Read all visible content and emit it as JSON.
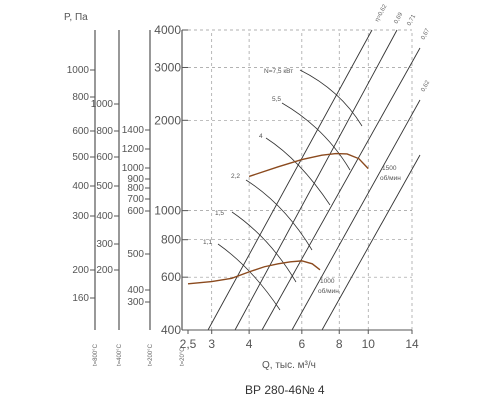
{
  "chart_data": {
    "type": "line",
    "title": "ВР 280-46№ 4",
    "xlabel": "Q, тыс. м³/ч",
    "ylabel": "P, Па",
    "x_ticks": [
      "2,5",
      "3",
      "4",
      "6",
      "8",
      "10",
      "14"
    ],
    "x_tick_values": [
      2.5,
      3,
      4,
      6,
      8,
      10,
      14
    ],
    "y_ticks": [
      "400",
      "600",
      "800",
      "1000",
      "2000",
      "3000",
      "4000"
    ],
    "y_tick_values": [
      400,
      600,
      800,
      1000,
      2000,
      3000,
      4000
    ],
    "xlim": [
      2.5,
      14
    ],
    "ylim": [
      400,
      4000
    ],
    "scale": "log-log",
    "grid": true,
    "aux_axes": [
      {
        "label": "t=800°C",
        "ticks": [
          "1000",
          "800",
          "600",
          "500",
          "400",
          "300",
          "200",
          "160"
        ]
      },
      {
        "label": "t=400°C",
        "ticks": [
          "1000",
          "800",
          "600",
          "500",
          "400",
          "300",
          "200"
        ]
      },
      {
        "label": "t=200°C",
        "ticks": [
          "1400",
          "1200",
          "1000",
          "900",
          "800",
          "700",
          "600",
          "500",
          "400",
          "300"
        ]
      },
      {
        "label": "t=20°C",
        "ticks": []
      }
    ],
    "series": [
      {
        "name": "1500 об/мин",
        "x": [
          4.0,
          5.0,
          6.0,
          7.0,
          7.8,
          8.5,
          9.3,
          10.0
        ],
        "y": [
          1300,
          1400,
          1480,
          1530,
          1550,
          1545,
          1490,
          1380
        ]
      },
      {
        "name": "1000 об/мин",
        "x": [
          2.5,
          3.0,
          3.5,
          4.0,
          4.5,
          5.0,
          5.5,
          6.0,
          6.5,
          6.9
        ],
        "y": [
          570,
          580,
          595,
          625,
          650,
          665,
          675,
          680,
          665,
          635
        ]
      }
    ],
    "power_labels": [
      "N=7,5 кВт",
      "5,5",
      "4",
      "2,2",
      "1,5",
      "1,1"
    ],
    "efficiency_labels": [
      "η=0,62",
      "0,69",
      "0,71",
      "0,67",
      "0,62"
    ],
    "curve_labels": {
      "rpm_1500": "1500",
      "rpm_1000": "1000",
      "unit": "об/мин"
    }
  }
}
